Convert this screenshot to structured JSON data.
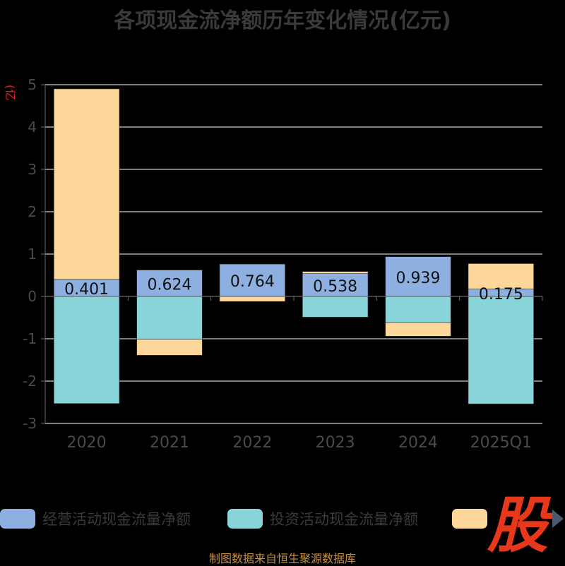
{
  "title": "各项现金流净额历年变化情况(亿元)",
  "unit_label": "(亿元)",
  "source": "制图数据来自恒生聚源数据库",
  "watermark": "股",
  "colors": {
    "operating": "#8eb0e0",
    "investing": "#88d4d8",
    "financing": "#fdd89a",
    "axis_text": "#4a4a4a",
    "grid": "#ffffff",
    "unit": "#e02020",
    "source": "#c8903c",
    "watermark": "#e8381c"
  },
  "legend": [
    {
      "label": "经营活动现金流量净额",
      "color": "#8eb0e0"
    },
    {
      "label": "投资活动现金流量净额",
      "color": "#88d4d8"
    },
    {
      "label": "",
      "color": "#fdd89a"
    }
  ],
  "chart_data": {
    "type": "bar",
    "stacked": true,
    "categories": [
      "2020",
      "2021",
      "2022",
      "2023",
      "2024",
      "2025Q1"
    ],
    "series": [
      {
        "name": "经营活动现金流量净额",
        "values": [
          0.401,
          0.624,
          0.764,
          0.538,
          0.939,
          0.175
        ],
        "data_labels": [
          "0.401",
          "0.624",
          "0.764",
          "0.538",
          "0.939",
          "0.175"
        ]
      },
      {
        "name": "投资活动现金流量净额",
        "values": [
          -2.53,
          -1.01,
          0,
          -0.49,
          -0.62,
          -2.54
        ]
      },
      {
        "values": [
          4.5,
          -0.38,
          -0.12,
          0.05,
          -0.32,
          0.6
        ]
      }
    ],
    "ylim": [
      -3,
      5
    ],
    "yticks": [
      -3,
      -2,
      -1,
      0,
      1,
      2,
      3,
      4,
      5
    ],
    "grid": true,
    "legend_position": "bottom"
  }
}
